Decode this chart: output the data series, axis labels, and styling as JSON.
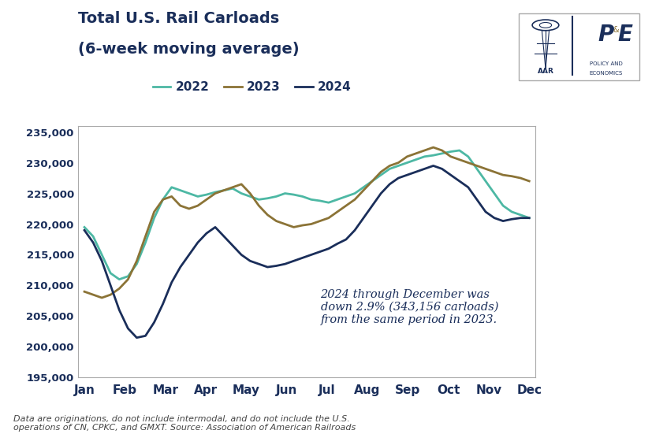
{
  "title_line1": "Total U.S. Rail Carloads",
  "title_line2": "(6-week moving average)",
  "annotation": "2024 through December was\ndown 2.9% (343,156 carloads)\nfrom the same period in 2023.",
  "footnote": "Data are originations, do not include intermodal, and do not include the U.S.\noperations of CN, CPKC, and GMXT. Source: Association of American Railroads",
  "ylim": [
    195000,
    236000
  ],
  "yticks": [
    195000,
    200000,
    205000,
    210000,
    215000,
    220000,
    225000,
    230000,
    235000
  ],
  "months": [
    "Jan",
    "Feb",
    "Mar",
    "Apr",
    "May",
    "Jun",
    "Jul",
    "Aug",
    "Sep",
    "Oct",
    "Nov",
    "Dec"
  ],
  "series_2022": {
    "color": "#4db8a4",
    "linewidth": 2.0,
    "data": [
      219500,
      218000,
      215000,
      212000,
      211000,
      211500,
      213500,
      217000,
      221000,
      224000,
      226000,
      225500,
      225000,
      224500,
      224800,
      225200,
      225500,
      225800,
      225000,
      224500,
      224000,
      224200,
      224500,
      225000,
      224800,
      224500,
      224000,
      223800,
      223500,
      224000,
      224500,
      225000,
      226000,
      227000,
      228000,
      229000,
      229500,
      230000,
      230500,
      231000,
      231200,
      231500,
      231800,
      232000,
      231000,
      229000,
      227000,
      225000,
      223000,
      222000,
      221500,
      221000
    ]
  },
  "series_2023": {
    "color": "#8B7336",
    "linewidth": 2.0,
    "data": [
      209000,
      208500,
      208000,
      208500,
      209500,
      211000,
      214000,
      218000,
      222000,
      224000,
      224500,
      223000,
      222500,
      223000,
      224000,
      225000,
      225500,
      226000,
      226500,
      225000,
      223000,
      221500,
      220500,
      220000,
      219500,
      219800,
      220000,
      220500,
      221000,
      222000,
      223000,
      224000,
      225500,
      227000,
      228500,
      229500,
      230000,
      231000,
      231500,
      232000,
      232500,
      232000,
      231000,
      230500,
      230000,
      229500,
      229000,
      228500,
      228000,
      227800,
      227500,
      227000
    ]
  },
  "series_2024": {
    "color": "#1a2e5a",
    "linewidth": 2.0,
    "data": [
      219000,
      217000,
      214000,
      210000,
      206000,
      203000,
      201500,
      201800,
      204000,
      207000,
      210500,
      213000,
      215000,
      217000,
      218500,
      219500,
      218000,
      216500,
      215000,
      214000,
      213500,
      213000,
      213200,
      213500,
      214000,
      214500,
      215000,
      215500,
      216000,
      216800,
      217500,
      219000,
      221000,
      223000,
      225000,
      226500,
      227500,
      228000,
      228500,
      229000,
      229500,
      229000,
      228000,
      227000,
      226000,
      224000,
      222000,
      221000,
      220500,
      220800,
      221000,
      221000
    ]
  },
  "legend_order": [
    "2022",
    "2023",
    "2024"
  ],
  "background_color": "#ffffff",
  "title_color": "#1a2e5a",
  "title_fontsize": 14,
  "tick_color": "#1a2e5a",
  "annotation_color": "#1a2e5a",
  "annotation_fontsize": 10.5
}
